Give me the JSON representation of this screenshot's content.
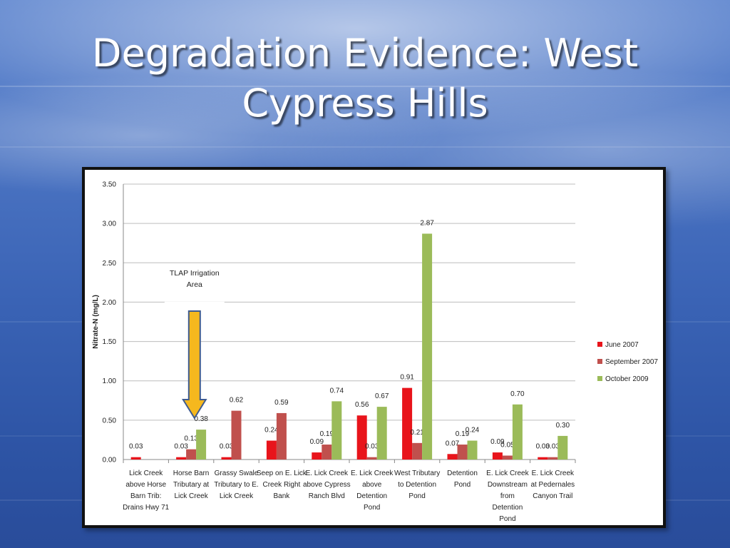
{
  "slide": {
    "title_line1": "Degradation Evidence: West",
    "title_line2": "Cypress Hills"
  },
  "chart_data": {
    "type": "bar",
    "title": "",
    "ylabel": "Nitrate-N (mg/L)",
    "xlabel": "",
    "ylim": [
      0,
      3.5
    ],
    "yticks": [
      "0.00",
      "0.50",
      "1.00",
      "1.50",
      "2.00",
      "2.50",
      "3.00",
      "3.50"
    ],
    "grid": true,
    "legend_position": "right",
    "categories": [
      [
        "Lick Creek",
        "above Horse",
        "Barn Trib:",
        "Drains Hwy 71"
      ],
      [
        "Horse Barn",
        "Tributary at",
        "Lick Creek"
      ],
      [
        "Grassy Swale",
        "Tributary to E.",
        "Lick Creek"
      ],
      [
        "Seep on E. Lick",
        "Creek Right",
        "Bank"
      ],
      [
        "E. Lick Creek",
        "above Cypress",
        "Ranch Blvd"
      ],
      [
        "E. Lick Creek",
        "above",
        "Detention",
        "Pond"
      ],
      [
        "West Tributary",
        "to Detention",
        "Pond"
      ],
      [
        "Detention",
        "Pond"
      ],
      [
        "E. Lick Creek",
        "Downstream",
        "from",
        "Detention",
        "Pond"
      ],
      [
        "E. Lick Creek",
        "at Pedernales",
        "Canyon Trail"
      ]
    ],
    "series": [
      {
        "name": "June 2007",
        "color": "#e8141b",
        "values": [
          0.03,
          0.03,
          0.03,
          0.24,
          0.09,
          0.56,
          0.91,
          0.07,
          0.09,
          0.03
        ],
        "labels": [
          "0.03",
          "0.03",
          "0.03",
          "0.24",
          "0.09",
          "0.56",
          "0.91",
          "0.07",
          "0.09",
          "0.03"
        ]
      },
      {
        "name": "September 2007",
        "color": "#c0504d",
        "values": [
          null,
          0.13,
          0.62,
          0.59,
          0.19,
          0.03,
          0.21,
          0.19,
          0.05,
          0.03
        ],
        "labels": [
          null,
          "0.13",
          "0.62",
          "0.59",
          "0.19",
          "0.03",
          "0.21",
          "0.19",
          "0.05",
          "0.03"
        ]
      },
      {
        "name": "October 2009",
        "color": "#9bbb59",
        "values": [
          null,
          0.38,
          null,
          null,
          0.74,
          0.67,
          2.87,
          0.24,
          0.7,
          0.3
        ],
        "labels": [
          null,
          "0.38",
          null,
          null,
          "0.74",
          "0.67",
          "2.87",
          "0.24",
          "0.70",
          "0.30"
        ]
      }
    ],
    "annotation": {
      "lines": [
        "TLAP Irrigation",
        "Area"
      ],
      "arrow_color": "#f5b81e",
      "points_to_category": 2
    }
  }
}
